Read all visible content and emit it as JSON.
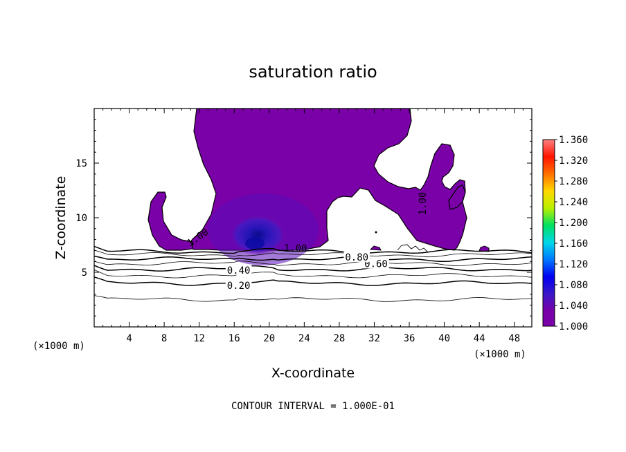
{
  "chart_data": {
    "type": "contour",
    "title": "saturation ratio",
    "xlabel": "X-coordinate",
    "ylabel": "Z-coordinate",
    "x_unit": "(×1000 m)",
    "y_unit": "(×1000 m)",
    "xlim": [
      0,
      50
    ],
    "ylim": [
      0,
      20
    ],
    "x_ticks": [
      4,
      8,
      12,
      16,
      20,
      24,
      28,
      32,
      36,
      40,
      44,
      48
    ],
    "y_ticks": [
      5,
      10,
      15
    ],
    "contour_interval": "CONTOUR INTERVAL = 1.000E-01",
    "contour_labels": [
      {
        "text": "0.20",
        "x": 16.5,
        "z": 3.8
      },
      {
        "text": "0.40",
        "x": 16.5,
        "z": 5.2
      },
      {
        "text": "0.60",
        "x": 32.2,
        "z": 5.8
      },
      {
        "text": "0.80",
        "x": 30.0,
        "z": 6.4
      },
      {
        "text": "1.00",
        "x": 11.8,
        "z": 8.2
      },
      {
        "text": "1.00",
        "x": 23.0,
        "z": 7.2
      },
      {
        "text": "1.00",
        "x": 37.5,
        "z": 11.3
      }
    ],
    "contour_levels_z": [
      2.5,
      4.0,
      4.7,
      5.3,
      5.8,
      6.2,
      6.6,
      6.9
    ],
    "colorbar": {
      "min": 1.0,
      "max": 1.36,
      "ticks": [
        "1.360",
        "1.320",
        "1.280",
        "1.240",
        "1.200",
        "1.160",
        "1.120",
        "1.080",
        "1.040",
        "1.000"
      ],
      "colors": [
        "#7a00a8",
        "#3a18c8",
        "#0000f0",
        "#0078ff",
        "#00d8e8",
        "#00e060",
        "#b8f000",
        "#ffd800",
        "#ff7000",
        "#ff1400",
        "#ff8080"
      ]
    },
    "fill_color": "#7a00a8",
    "core_color": "#1a0cc0"
  }
}
